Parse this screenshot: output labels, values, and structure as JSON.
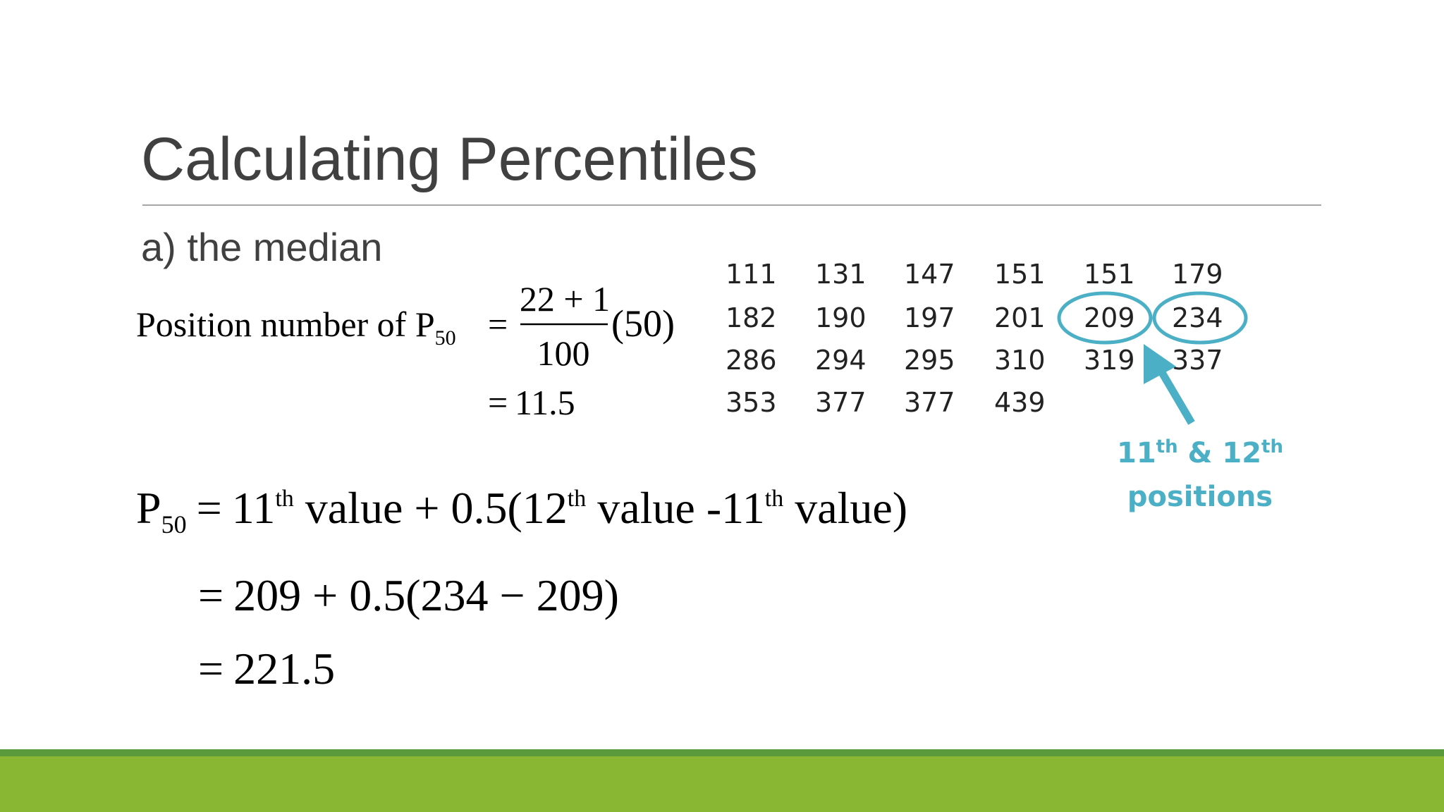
{
  "title": "Calculating Percentiles",
  "subtitle": "a) the median",
  "position_formula": {
    "lhs": "Position number of P",
    "lhs_sub": "50",
    "equals": "=",
    "numerator": "22 + 1",
    "denominator": "100",
    "factor": "(50)",
    "result": "11.5"
  },
  "table": {
    "rows": [
      [
        "111",
        "131",
        "147",
        "151",
        "151",
        "179"
      ],
      [
        "182",
        "190",
        "197",
        "201",
        "209",
        "234"
      ],
      [
        "286",
        "294",
        "295",
        "310",
        "319",
        "337"
      ],
      [
        "353",
        "377",
        "377",
        "439"
      ]
    ]
  },
  "annotation": {
    "first": "11",
    "first_sup": "th",
    "joiner": " & ",
    "second": "12",
    "second_sup": "th",
    "line2": "positions"
  },
  "p50_formula": {
    "symbol": "P",
    "sub": "50",
    "equals": "=",
    "line1": [
      "11",
      "th",
      " value + 0.5(",
      "12",
      "th",
      " value -",
      "11",
      "th",
      " value)"
    ],
    "line2": "209 + 0.5(234 − 209)",
    "line3": "221.5"
  }
}
